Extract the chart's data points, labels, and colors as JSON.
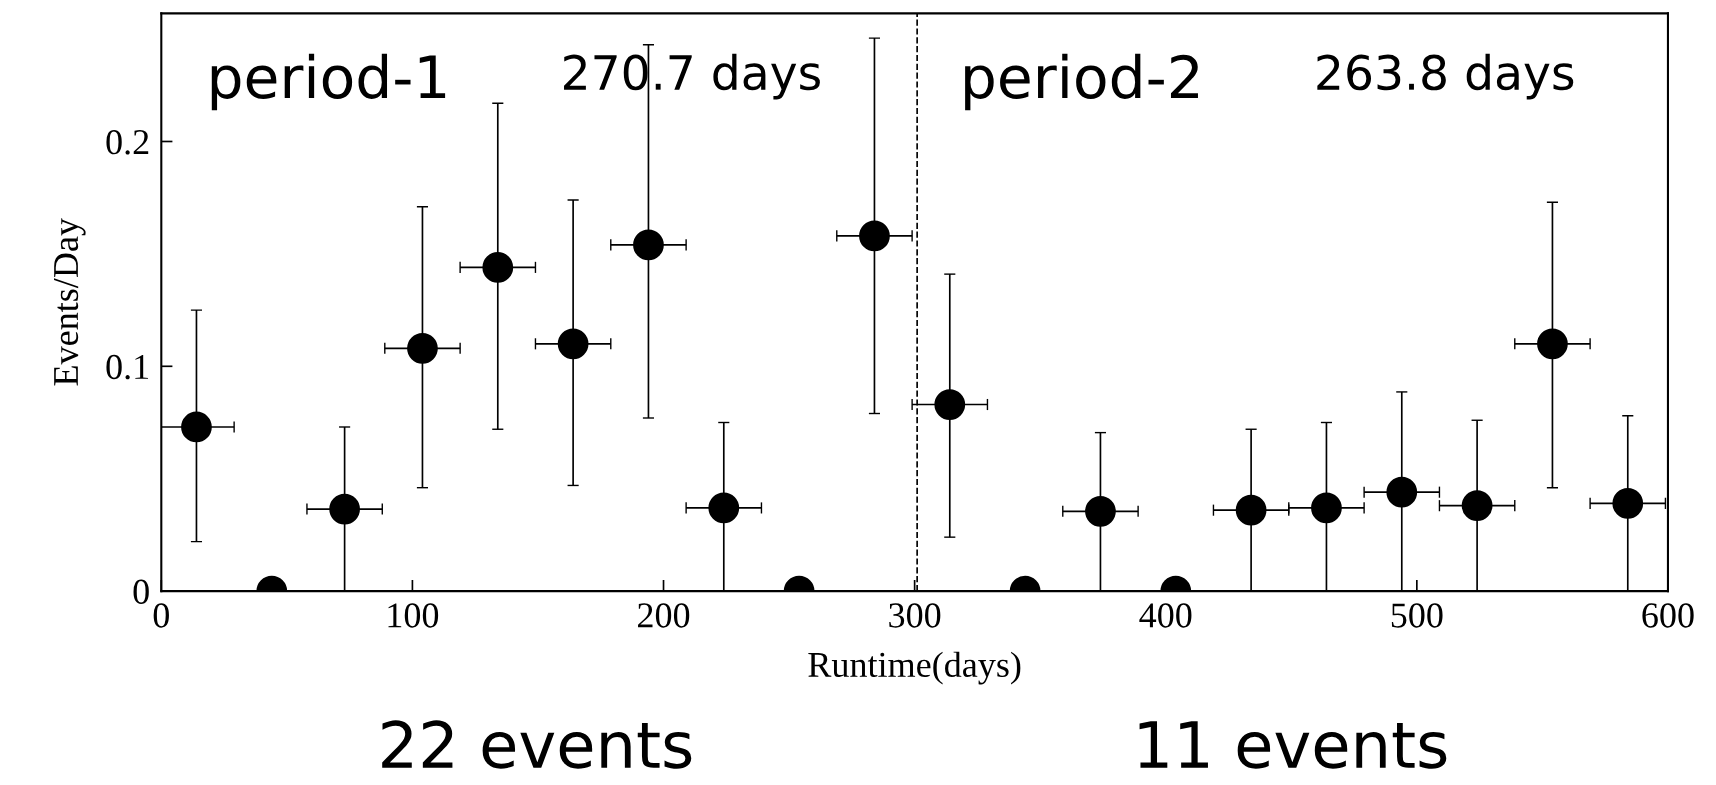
{
  "chart_data": {
    "type": "scatter",
    "xlabel": "Runtime(days)",
    "ylabel": "Events/Day",
    "x": [
      14,
      44,
      73,
      104,
      134,
      164,
      194,
      224,
      254,
      284,
      314,
      344,
      374,
      404,
      434,
      464,
      494,
      524,
      554,
      584
    ],
    "values": [
      0.073,
      0,
      0.0365,
      0.108,
      0.144,
      0.11,
      0.154,
      0.037,
      0,
      0.158,
      0.083,
      0,
      0.0355,
      0,
      0.036,
      0.037,
      0.044,
      0.038,
      0.11,
      0.039
    ],
    "errors": [
      [
        0.022,
        0.125
      ],
      null,
      [
        0,
        0.073
      ],
      [
        0.046,
        0.171
      ],
      [
        0.072,
        0.217
      ],
      [
        0.047,
        0.174
      ],
      [
        0.077,
        0.243
      ],
      [
        0,
        0.075
      ],
      null,
      [
        0.079,
        0.246
      ],
      [
        0.024,
        0.141
      ],
      null,
      [
        0,
        0.0705
      ],
      null,
      [
        0,
        0.072
      ],
      [
        0,
        0.075
      ],
      [
        0,
        0.0886
      ],
      [
        0,
        0.076
      ],
      [
        0.046,
        0.173
      ],
      [
        0,
        0.078
      ]
    ],
    "xerrors": [
      15,
      null,
      15,
      15,
      15,
      15,
      15,
      15,
      null,
      15,
      15,
      null,
      15,
      null,
      15,
      15,
      15,
      15,
      15,
      15
    ],
    "color": "#000000",
    "marker": "circle",
    "xlim": [
      0,
      600
    ],
    "ylim": [
      0,
      0.257
    ],
    "xticks": [
      0,
      100,
      200,
      300,
      400,
      500,
      600
    ],
    "yticks": [
      0,
      0.1,
      0.2
    ],
    "ref_lines": [
      {
        "axis": "x",
        "value": 301,
        "line_style": "dashed",
        "color": "#000000"
      }
    ],
    "grid": false,
    "legend": false,
    "annotations": [
      "period-1",
      "270.7 days",
      "period-2",
      "263.8 days",
      "22 events",
      "11 events"
    ]
  }
}
